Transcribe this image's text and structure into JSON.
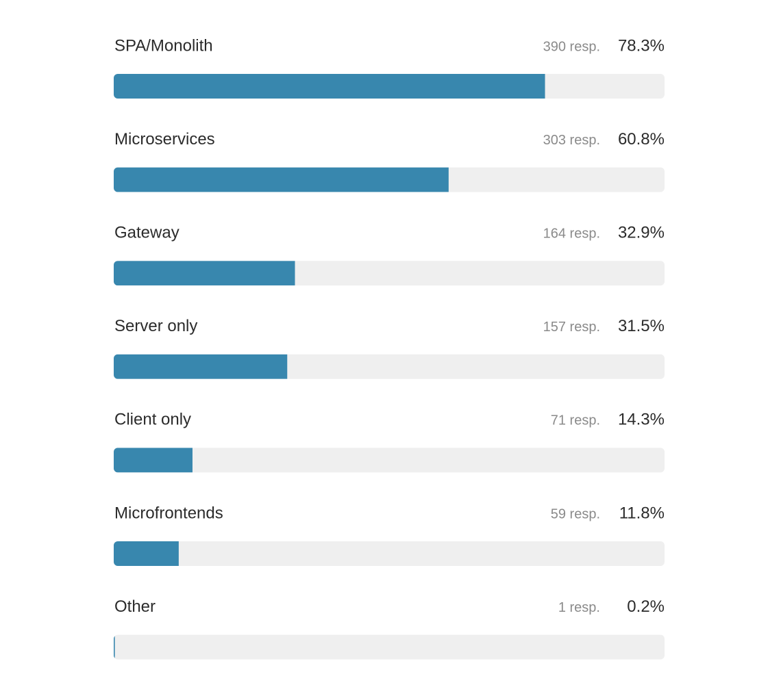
{
  "chart_data": {
    "type": "bar",
    "orientation": "horizontal",
    "categories": [
      "SPA/Monolith",
      "Microservices",
      "Gateway",
      "Server only",
      "Client only",
      "Microfrontends",
      "Other"
    ],
    "values": [
      78.3,
      60.8,
      32.9,
      31.5,
      14.3,
      11.8,
      0.2
    ],
    "value_labels": [
      "78.3%",
      "60.8%",
      "32.9%",
      "31.5%",
      "14.3%",
      "11.8%",
      "0.2%"
    ],
    "count_labels": [
      "390 resp.",
      "303 resp.",
      "164 resp.",
      "157 resp.",
      "71 resp.",
      "59 resp.",
      "1 resp."
    ],
    "xlim": [
      0,
      100
    ],
    "color": "#3887ae",
    "track_color": "#efefef"
  }
}
